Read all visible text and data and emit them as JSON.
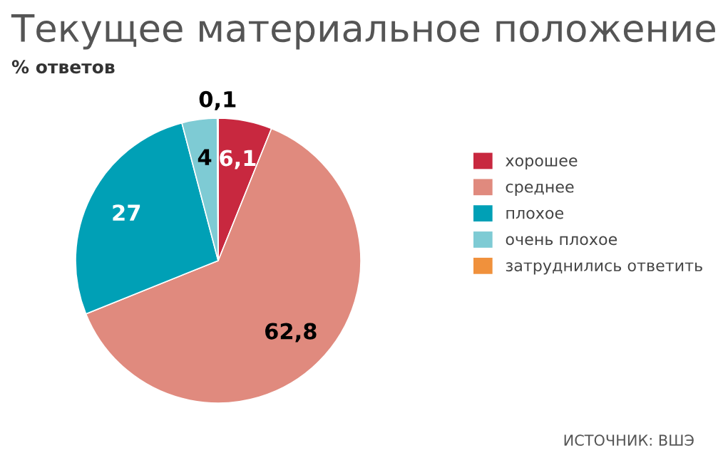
{
  "chart_data": {
    "type": "pie",
    "title": "Текущее материальное положение",
    "subtitle": "% ответов",
    "categories": [
      "хорошее",
      "среднее",
      "плохое",
      "очень плохое",
      "затруднились ответить"
    ],
    "values": [
      6.1,
      62.8,
      27,
      4,
      0.1
    ],
    "colors": [
      "#c8283f",
      "#e08a7e",
      "#00a0b6",
      "#7ecbd4",
      "#f0913c"
    ],
    "value_labels": [
      "6,1",
      "62,8",
      "27",
      "4",
      "0,1"
    ],
    "legend": "right",
    "annotations": [
      "ИСТОЧНИК: ВШЭ"
    ]
  }
}
